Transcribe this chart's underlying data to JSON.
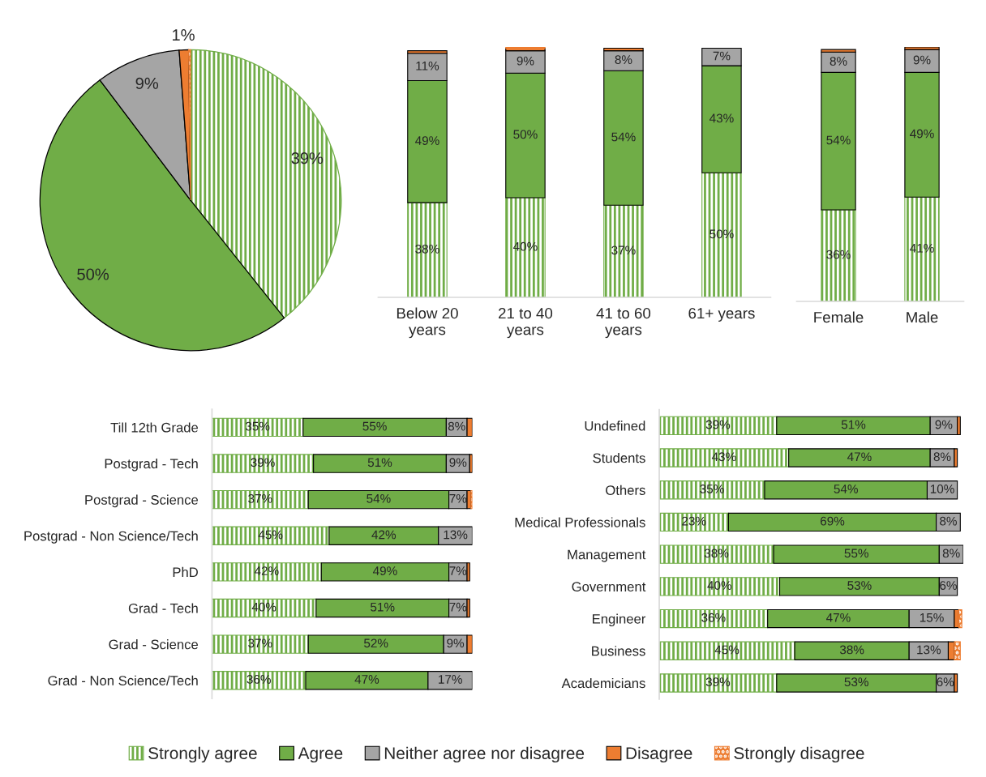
{
  "chart_data": [
    {
      "type": "pie",
      "categories": [
        "Strongly agree",
        "Agree",
        "Neither agree nor disagree",
        "Disagree",
        "Strongly disagree"
      ],
      "values": [
        39,
        50,
        9,
        1,
        0.2
      ],
      "colors": [
        "#70ad47",
        "#70ad47",
        "#a5a5a5",
        "#ed7d31",
        "#ed7d31"
      ],
      "value_labels": [
        "39%",
        "50%",
        "9%",
        "1%",
        null
      ],
      "legend": "bottom"
    },
    {
      "type": "bar",
      "stacked": true,
      "tick_labels": "x",
      "categories": [
        "Below 20\nyears",
        "21 to 40\nyears",
        "41 to 60\nyears",
        "61+ years"
      ],
      "series": [
        {
          "color": "#70ad47",
          "values": [
            38,
            40,
            37,
            50
          ],
          "value_labels": [
            "38%",
            "40%",
            "37%",
            "50%"
          ]
        },
        {
          "color": "#70ad47",
          "values": [
            49,
            50,
            54,
            43
          ],
          "value_labels": [
            "49%",
            "50%",
            "54%",
            "43%"
          ]
        },
        {
          "color": "#a5a5a5",
          "values": [
            11,
            9,
            8,
            7
          ],
          "value_labels": [
            "11%",
            "9%",
            "8%",
            "7%"
          ]
        },
        {
          "color": "#ed7d31",
          "values": [
            1,
            1,
            1,
            null
          ]
        },
        {
          "color": "#ed7d31",
          "values": [
            null,
            0.5,
            null,
            null
          ]
        }
      ]
    },
    {
      "type": "bar",
      "stacked": true,
      "tick_labels": "x",
      "categories": [
        "Female",
        "Male"
      ],
      "series": [
        {
          "color": "#70ad47",
          "values": [
            36,
            41
          ],
          "value_labels": [
            "36%",
            "41%"
          ]
        },
        {
          "color": "#70ad47",
          "values": [
            54,
            49
          ],
          "value_labels": [
            "54%",
            "49%"
          ]
        },
        {
          "color": "#a5a5a5",
          "values": [
            8,
            9
          ],
          "value_labels": [
            "8%",
            "9%"
          ]
        },
        {
          "color": "#ed7d31",
          "values": [
            1,
            1
          ]
        }
      ]
    },
    {
      "type": "bar",
      "stacked": true,
      "orientation": "horizontal",
      "tick_labels": "y",
      "categories": [
        "Till 12th Grade",
        "Postgrad - Tech",
        "Postgrad - Science",
        "Postgrad - Non Science/Tech",
        "PhD",
        "Grad - Tech",
        "Grad - Science",
        "Grad - Non Science/Tech"
      ],
      "series": [
        {
          "color": "#70ad47",
          "values": [
            35,
            39,
            37,
            45,
            42,
            40,
            37,
            36
          ],
          "value_labels": [
            "35%",
            "39%",
            "37%",
            "45%",
            "42%",
            "40%",
            "37%",
            "36%"
          ]
        },
        {
          "color": "#70ad47",
          "values": [
            55,
            51,
            54,
            42,
            49,
            51,
            52,
            47
          ],
          "value_labels": [
            "55%",
            "51%",
            "54%",
            "42%",
            "49%",
            "51%",
            "52%",
            "47%"
          ]
        },
        {
          "color": "#a5a5a5",
          "values": [
            8,
            9,
            7,
            13,
            7,
            7,
            9,
            17
          ],
          "value_labels": [
            "8%",
            "9%",
            "7%",
            "13%",
            "7%",
            "7%",
            "9%",
            "17%"
          ]
        },
        {
          "color": "#ed7d31",
          "values": [
            2,
            1,
            1.5,
            null,
            1,
            1,
            2,
            null
          ]
        },
        {
          "color": "#ed7d31",
          "values": [
            null,
            null,
            0.5,
            null,
            null,
            null,
            null,
            null
          ]
        }
      ]
    },
    {
      "type": "bar",
      "stacked": true,
      "orientation": "horizontal",
      "tick_labels": "y",
      "categories": [
        "Undefined",
        "Students",
        "Others",
        "Medical Professionals",
        "Management",
        "Government",
        "Engineer",
        "Business",
        "Academicians"
      ],
      "series": [
        {
          "color": "#70ad47",
          "values": [
            39,
            43,
            35,
            23,
            38,
            40,
            36,
            45,
            39
          ],
          "value_labels": [
            "39%",
            "43%",
            "35%",
            "23%",
            "38%",
            "40%",
            "36%",
            "45%",
            "39%"
          ]
        },
        {
          "color": "#70ad47",
          "values": [
            51,
            47,
            54,
            69,
            55,
            53,
            47,
            38,
            53
          ],
          "value_labels": [
            "51%",
            "47%",
            "54%",
            "69%",
            "55%",
            "53%",
            "47%",
            "38%",
            "53%"
          ]
        },
        {
          "color": "#a5a5a5",
          "values": [
            9,
            8,
            10,
            8,
            8,
            6,
            15,
            13,
            6
          ],
          "value_labels": [
            "9%",
            "8%",
            "10%",
            "8%",
            "8%",
            "6%",
            "15%",
            "13%",
            "6%"
          ]
        },
        {
          "color": "#ed7d31",
          "values": [
            1,
            1,
            null,
            null,
            null,
            null,
            1.5,
            2,
            1
          ]
        },
        {
          "color": "#ed7d31",
          "values": [
            null,
            null,
            null,
            null,
            null,
            null,
            1,
            2,
            null
          ]
        }
      ]
    }
  ]
}
